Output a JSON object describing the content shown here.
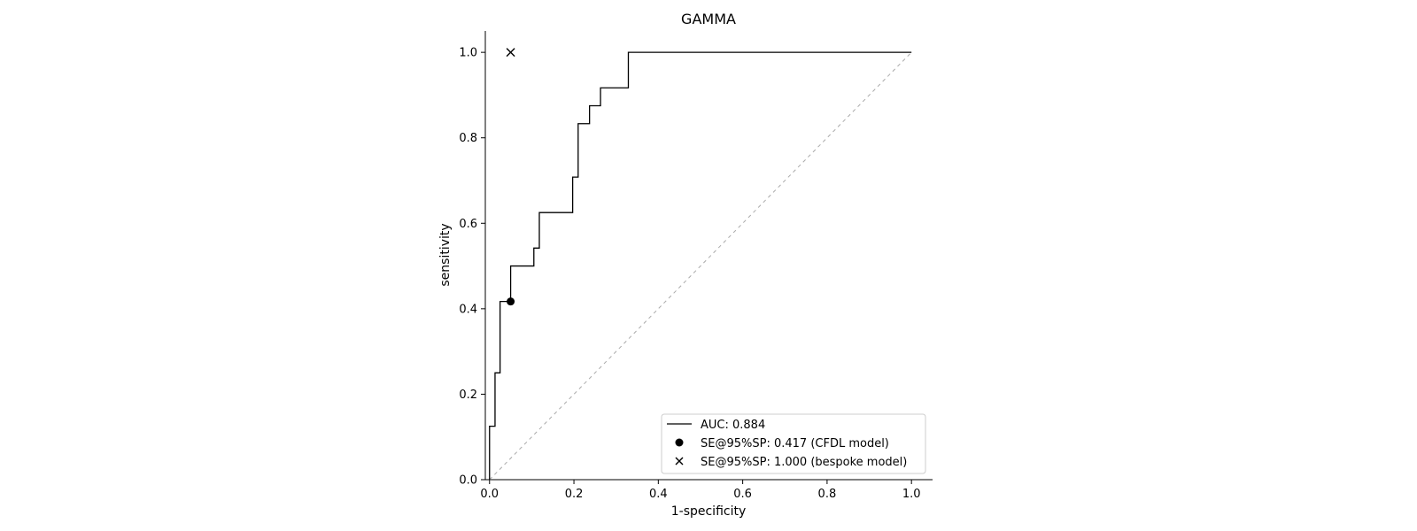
{
  "chart_data": {
    "type": "line",
    "title": "GAMMA",
    "xlabel": "1-specificity",
    "ylabel": "sensitivity",
    "xlim": [
      -0.01,
      1.05
    ],
    "ylim": [
      0,
      1.05
    ],
    "xticks": [
      0.0,
      0.2,
      0.4,
      0.6,
      0.8,
      1.0
    ],
    "xtick_labels": [
      "0.0",
      "0.2",
      "0.4",
      "0.6",
      "0.8",
      "1.0"
    ],
    "yticks": [
      0.0,
      0.2,
      0.4,
      0.6,
      0.8,
      1.0
    ],
    "ytick_labels": [
      "0.0",
      "0.2",
      "0.4",
      "0.6",
      "0.8",
      "1.0"
    ],
    "grid": false,
    "legend_position": "lower-right",
    "series": [
      {
        "name": "AUC: 0.884",
        "kind": "roc-step",
        "color": "#000000",
        "points": [
          [
            0.0,
            0.0
          ],
          [
            0.0,
            0.125
          ],
          [
            0.013,
            0.125
          ],
          [
            0.013,
            0.25
          ],
          [
            0.025,
            0.25
          ],
          [
            0.025,
            0.417
          ],
          [
            0.05,
            0.417
          ],
          [
            0.05,
            0.5
          ],
          [
            0.105,
            0.5
          ],
          [
            0.105,
            0.542
          ],
          [
            0.118,
            0.542
          ],
          [
            0.118,
            0.625
          ],
          [
            0.197,
            0.625
          ],
          [
            0.197,
            0.708
          ],
          [
            0.21,
            0.708
          ],
          [
            0.21,
            0.833
          ],
          [
            0.237,
            0.833
          ],
          [
            0.237,
            0.875
          ],
          [
            0.263,
            0.875
          ],
          [
            0.263,
            0.917
          ],
          [
            0.329,
            0.917
          ],
          [
            0.329,
            1.0
          ],
          [
            1.0,
            1.0
          ]
        ]
      },
      {
        "name": "SE@95%SP: 0.417 (CFDL model)",
        "kind": "point-dot",
        "color": "#000000",
        "x": 0.05,
        "y": 0.417
      },
      {
        "name": "SE@95%SP: 1.000 (bespoke model)",
        "kind": "point-x",
        "color": "#000000",
        "x": 0.05,
        "y": 1.0
      }
    ],
    "reference_line": {
      "from": [
        0,
        0
      ],
      "to": [
        1,
        1
      ],
      "style": "dashed",
      "color": "#aaaaaa"
    }
  }
}
